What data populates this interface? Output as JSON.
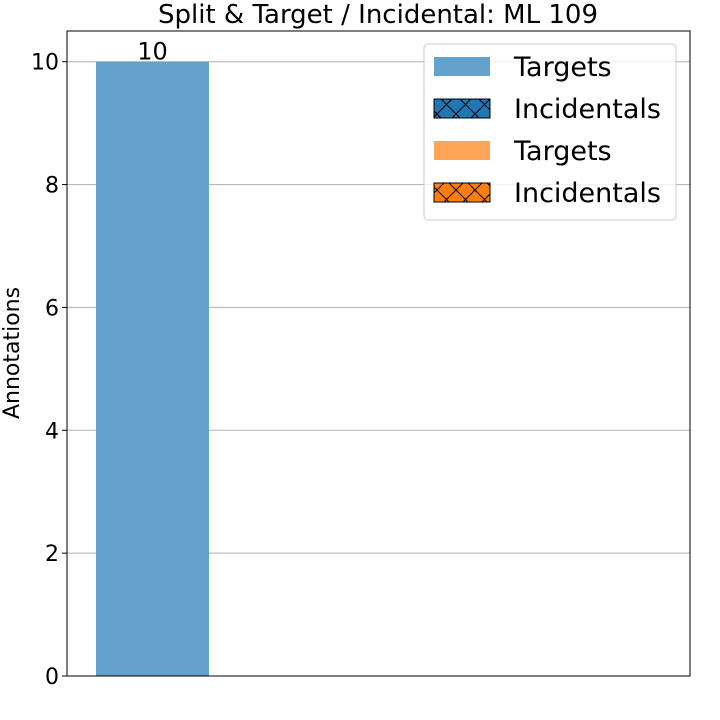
{
  "chart_data": {
    "type": "bar",
    "title": "Split & Target / Incidental: ML 109",
    "xlabel": "",
    "ylabel": "Annotations",
    "ylim": [
      0,
      10.5
    ],
    "yticks": [
      0,
      2,
      4,
      6,
      8,
      10
    ],
    "grid": true,
    "legend_position": "top-right",
    "bars": [
      {
        "series": "Targets",
        "value": 10,
        "color": "#64a1cc",
        "hatch": false,
        "label": "10"
      }
    ],
    "legend": [
      {
        "label": "Targets",
        "color": "#64a1cc",
        "hatch": false
      },
      {
        "label": "Incidentals",
        "color": "#1f77b4",
        "hatch": true
      },
      {
        "label": "Targets",
        "color": "#ffa556",
        "hatch": false
      },
      {
        "label": "Incidentals",
        "color": "#ff7f0e",
        "hatch": true
      }
    ]
  }
}
